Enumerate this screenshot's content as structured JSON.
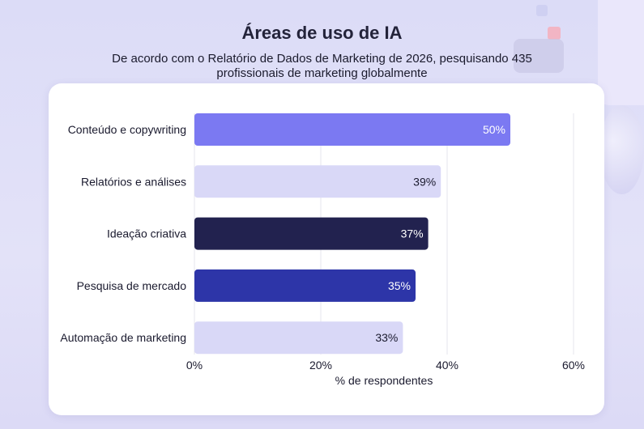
{
  "title": "Áreas de uso de IA",
  "subtitle": "De acordo com o Relatório de Dados de Marketing de 2026, pesquisando 435 profissionais de marketing globalmente",
  "chart_data": {
    "type": "bar",
    "orientation": "horizontal",
    "categories": [
      "Conteúdo e copywriting",
      "Relatórios e análises",
      "Ideação criativa",
      "Pesquisa de mercado",
      "Automação de marketing"
    ],
    "values": [
      50,
      39,
      37,
      35,
      33
    ],
    "data_labels": [
      "50%",
      "39%",
      "37%",
      "35%",
      "33%"
    ],
    "bar_colors": [
      "#7b79f2",
      "#d9d8f7",
      "#22224f",
      "#2d35a8",
      "#d9d8f7"
    ],
    "label_colors": [
      "#ffffff",
      "#1a1a2e",
      "#ffffff",
      "#ffffff",
      "#1a1a2e"
    ],
    "xlabel": "% de respondentes",
    "xticks": [
      "0%",
      "20%",
      "40%",
      "60%"
    ],
    "xtick_values": [
      0,
      20,
      40,
      60
    ],
    "xlim": [
      0,
      60
    ],
    "grid": "vertical",
    "gridline_color": "#e4e4ec"
  }
}
